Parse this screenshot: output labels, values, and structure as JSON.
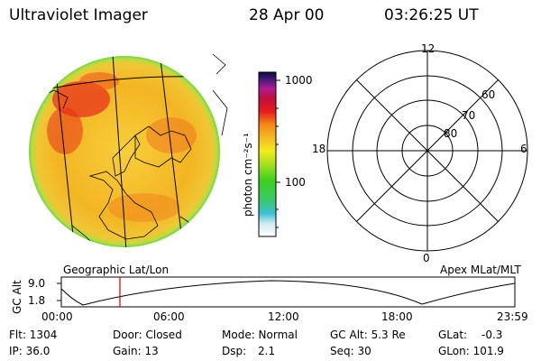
{
  "header": {
    "instrument": "Ultraviolet Imager",
    "date": "28 Apr 00",
    "time": "03:26:25 UT"
  },
  "image_panel": {
    "label": "Geographic Lat/Lon"
  },
  "colorbar": {
    "unit_label": "photon cm⁻²s⁻¹",
    "ticks": [
      "1000",
      "100"
    ],
    "scale": "log"
  },
  "polar_plot": {
    "label": "Apex MLat/MLT",
    "mlt_labels": [
      "12",
      "18",
      "6",
      "0"
    ],
    "mlat_labels": [
      "60",
      "70",
      "80"
    ]
  },
  "altitude_plot": {
    "ylabel": "GC Alt",
    "yticks": [
      "9.0",
      "1.8"
    ],
    "xticks": [
      "00:00",
      "06:00",
      "12:00",
      "18:00",
      "23:59"
    ]
  },
  "status": {
    "row1": {
      "flt": "Flt: 1304",
      "door": "Door: Closed",
      "mode": "Mode: Normal",
      "gcalt": "GC Alt: 5.3 Re",
      "glat": "GLat:",
      "glat_val": "-0.3"
    },
    "row2": {
      "ip": "IP: 36.0",
      "gain": "Gain: 13",
      "dsp": "Dsp:",
      "dsp_val": "2.1",
      "seq": "Seq: 30",
      "glon": "GLon: 101.9"
    }
  },
  "colors": {
    "disk_base": "#f5c020",
    "disk_hot": "#e8201a",
    "disk_edge": "#7cd63a",
    "marker": "#cc0000"
  }
}
